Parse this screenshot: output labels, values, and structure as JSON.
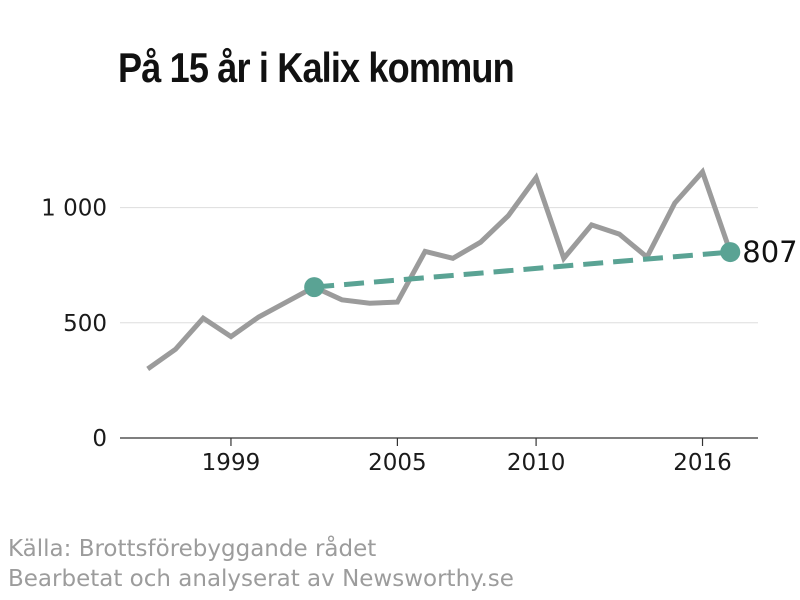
{
  "title": "På 15 år i Kalix kommun",
  "source_line1": "Källa: Brottsförebyggande rådet",
  "source_line2": "Bearbetat och analyserat av Newsworthy.se",
  "colors": {
    "series": "#9b9b9b",
    "trend": "#5aa394",
    "grid": "#dddddd",
    "axis": "#333333"
  },
  "chart_data": {
    "type": "line",
    "title": "På 15 år i Kalix kommun",
    "xlabel": "",
    "ylabel": "",
    "x_ticks": [
      "1999",
      "2005",
      "2010",
      "2016"
    ],
    "y_ticks": [
      "0",
      "500",
      "1 000"
    ],
    "y_tick_values": [
      0,
      500,
      1000
    ],
    "ylim": [
      0,
      1250
    ],
    "xlim": [
      1995,
      2018
    ],
    "grid": "horizontal",
    "series": [
      {
        "x": [
          1996,
          1997,
          1998,
          1999,
          2000,
          2001,
          2002,
          2003,
          2004,
          2005,
          2006,
          2007,
          2008,
          2009,
          2010,
          2011,
          2012,
          2013,
          2014,
          2015,
          2016,
          2017
        ],
        "values": [
          300,
          385,
          520,
          440,
          525,
          590,
          655,
          600,
          585,
          590,
          810,
          780,
          850,
          965,
          1130,
          780,
          925,
          885,
          785,
          1020,
          1155,
          807
        ]
      },
      {
        "type": "trend",
        "x": [
          2002,
          2017
        ],
        "values": [
          655,
          807
        ]
      }
    ],
    "end_label": "807"
  }
}
